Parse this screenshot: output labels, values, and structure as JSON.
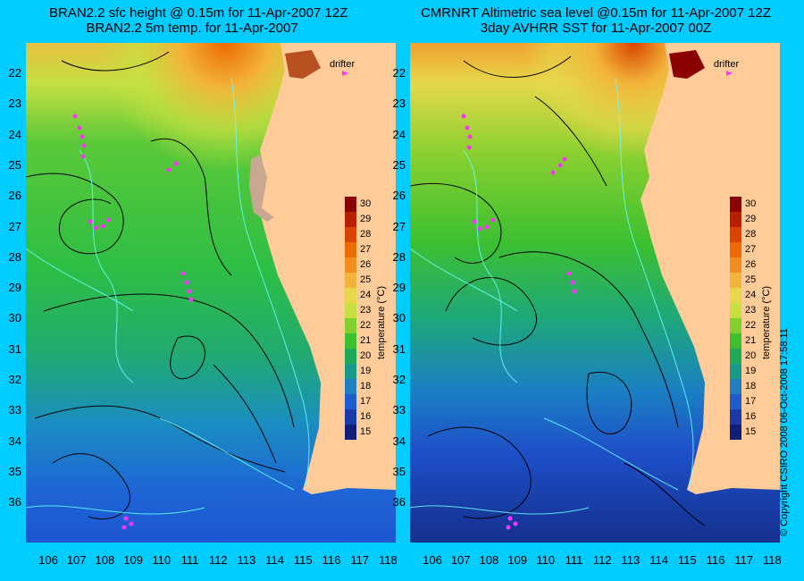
{
  "left_panel": {
    "title_line1": "BRAN2.2 sfc height @ 0.15m for 11-Apr-2007 12Z",
    "title_line2": "BRAN2.2 5m temp. for 11-Apr-2007",
    "drifter_label": "drifter"
  },
  "right_panel": {
    "title_line1": "CMRNRT Altimetric sea level  @0.15m  for 11-Apr-2007 12Z",
    "title_line2": "3day AVHRR SST for 11-Apr-2007 00Z",
    "drifter_label": "drifter"
  },
  "y_axis_labels": [
    "22",
    "23",
    "24",
    "25",
    "26",
    "27",
    "28",
    "29",
    "30",
    "31",
    "32",
    "33",
    "34",
    "35",
    "36"
  ],
  "x_axis_labels": [
    "106",
    "107",
    "108",
    "109",
    "110",
    "111",
    "112",
    "113",
    "114",
    "115",
    "116",
    "117",
    "118"
  ],
  "colorbar": {
    "title": "temperature (°C)",
    "ticks": [
      "30",
      "29",
      "28",
      "27",
      "26",
      "25",
      "24",
      "23",
      "22",
      "21",
      "20",
      "19",
      "18",
      "17",
      "16",
      "15"
    ],
    "colors": [
      "#8b0000",
      "#b81f00",
      "#d94400",
      "#ec6a00",
      "#f08e20",
      "#f2b43a",
      "#e6d84a",
      "#c6e040",
      "#82d030",
      "#3cc030",
      "#1ea85a",
      "#1a9a8a",
      "#1f7fbf",
      "#1f5cd0",
      "#1a3aa8",
      "#10207a"
    ]
  },
  "copyright": "© Copyright CSIRO 2008   06-Oct-2008 17:58:11",
  "colors": {
    "background": "#00ccff",
    "land": "#ffcc99",
    "drifter": "#ff33ff",
    "bathymetry": "#66ffff",
    "contour": "#000000"
  }
}
